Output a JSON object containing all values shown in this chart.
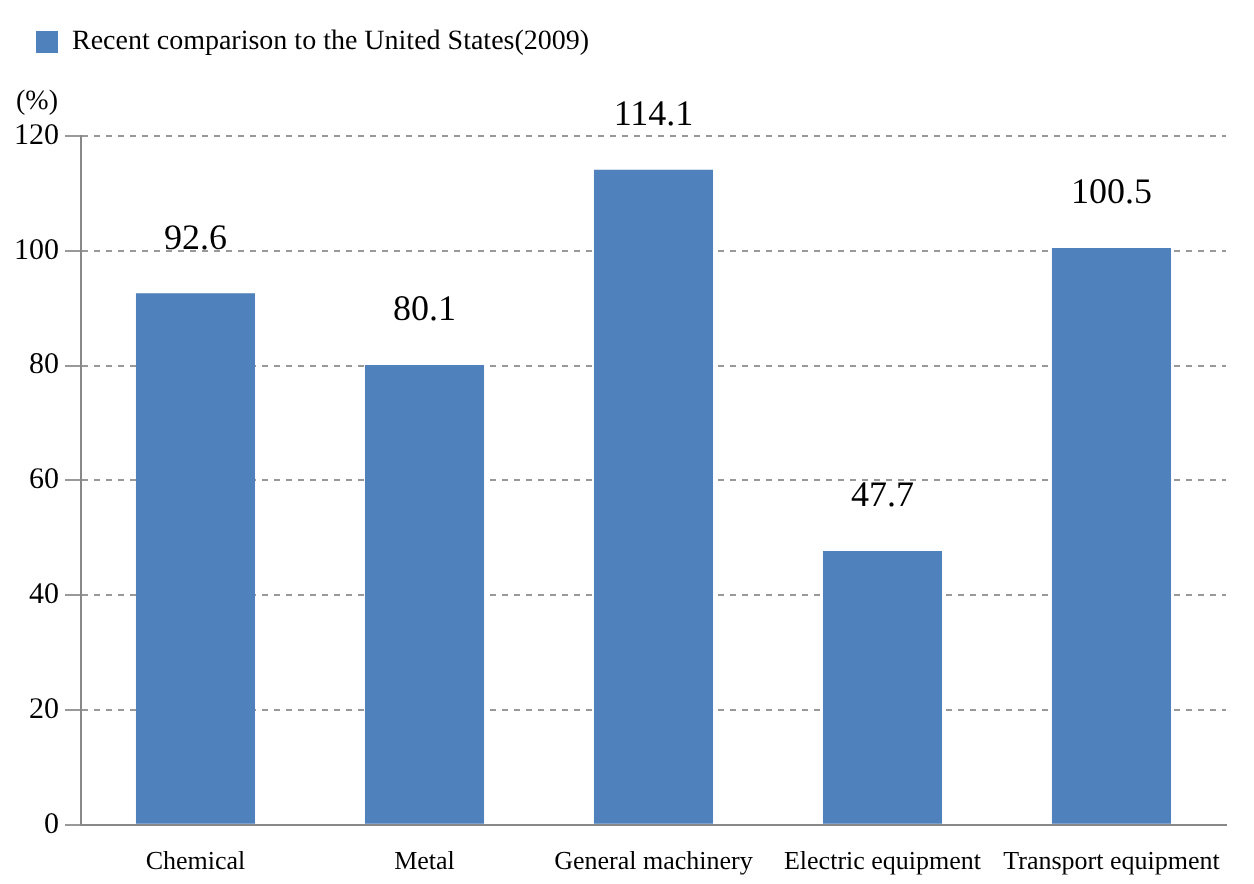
{
  "chart_data": {
    "type": "bar",
    "ylabel": "(%)",
    "categories": [
      "Chemical",
      "Metal",
      "General machinery",
      "Electric equipment",
      "Transport equipment"
    ],
    "series": [
      {
        "name": "Recent comparison to the United States(2009)",
        "color": "#4f81bd",
        "values": [
          92.6,
          80.1,
          114.1,
          47.7,
          100.5
        ]
      }
    ],
    "ylim": [
      0,
      120
    ],
    "yticks": [
      0,
      20,
      40,
      60,
      80,
      100,
      120
    ],
    "grid": "y",
    "legend": "top left",
    "data_labels": true
  }
}
